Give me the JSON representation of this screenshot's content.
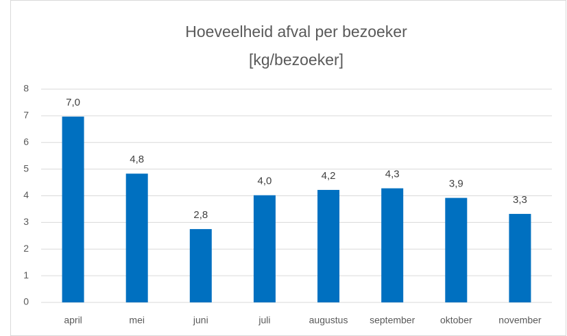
{
  "chart_data": {
    "type": "bar",
    "title": "Hoeveelheid afval per bezoeker",
    "subtitle": "[kg/bezoeker]",
    "categories": [
      "april",
      "mei",
      "juni",
      "juli",
      "augustus",
      "september",
      "oktober",
      "november"
    ],
    "values": [
      6.97,
      4.83,
      2.75,
      4.02,
      4.22,
      4.28,
      3.92,
      3.32
    ],
    "value_labels": [
      "7,0",
      "4,8",
      "2,8",
      "4,0",
      "4,2",
      "4,3",
      "3,9",
      "3,3"
    ],
    "color": "#0070c0",
    "ylim": [
      0,
      8
    ],
    "yticks": [
      0,
      1,
      2,
      3,
      4,
      5,
      6,
      7,
      8
    ],
    "grid": true
  }
}
